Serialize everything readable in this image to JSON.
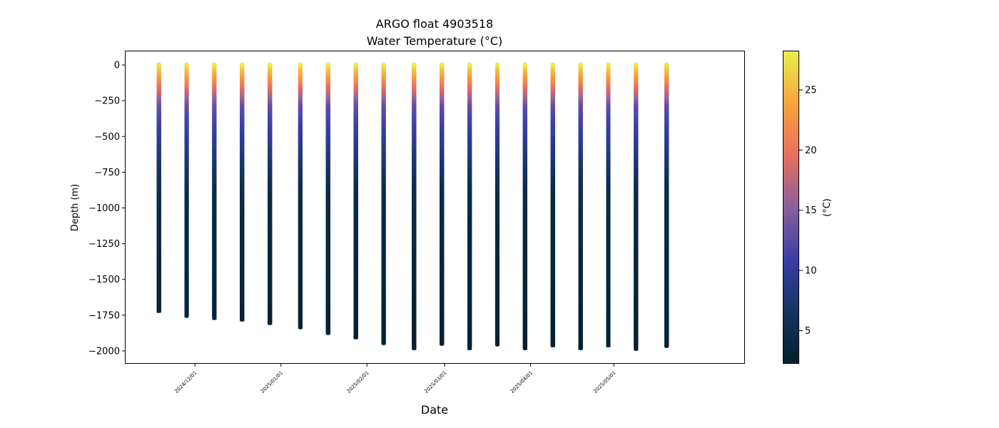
{
  "chart_data": {
    "type": "scatter",
    "title": "ARGO float 4903518",
    "subtitle": "Water Temperature (°C)",
    "xlabel": "Date",
    "ylabel": "Depth (m)",
    "colorbar_label": "(°C)",
    "ylim": [
      -2085,
      95
    ],
    "xlim": [
      "2024-11-06",
      "2025-06-17"
    ],
    "clim": [
      2.3,
      28.2
    ],
    "yticks": [
      0,
      -250,
      -500,
      -750,
      -1000,
      -1250,
      -1500,
      -1750,
      -2000
    ],
    "ytick_labels": [
      "0",
      "−250",
      "−500",
      "−750",
      "−1000",
      "−1250",
      "−1500",
      "−1750",
      "−2000"
    ],
    "xticks": [
      "2024-12-01",
      "2025-01-01",
      "2025-02-01",
      "2025-03-01",
      "2025-04-01",
      "2025-05-01"
    ],
    "xtick_labels": [
      "2024/12/01",
      "2025/01/01",
      "2025/02/01",
      "2025/03/01",
      "2025/04/01",
      "2025/05/01"
    ],
    "colorbar_ticks": [
      5,
      10,
      15,
      20,
      25
    ],
    "colorbar_tick_labels": [
      "5",
      "10",
      "15",
      "20",
      "25"
    ],
    "colormap": [
      "#04202e",
      "#133561",
      "#3b3ea8",
      "#8a5f9d",
      "#e86f5c",
      "#f9a43b",
      "#e8f04c"
    ],
    "grid": false,
    "profiles": [
      {
        "date": "2024-11-18",
        "max_depth": -1720,
        "surface_temp": 27.5
      },
      {
        "date": "2024-11-28",
        "max_depth": -1755,
        "surface_temp": 27.6
      },
      {
        "date": "2024-12-08",
        "max_depth": -1770,
        "surface_temp": 27.8
      },
      {
        "date": "2024-12-18",
        "max_depth": -1780,
        "surface_temp": 27.9
      },
      {
        "date": "2024-12-28",
        "max_depth": -1805,
        "surface_temp": 27.8
      },
      {
        "date": "2025-01-08",
        "max_depth": -1835,
        "surface_temp": 27.9
      },
      {
        "date": "2025-01-18",
        "max_depth": -1875,
        "surface_temp": 28.0
      },
      {
        "date": "2025-01-28",
        "max_depth": -1905,
        "surface_temp": 28.0
      },
      {
        "date": "2025-02-07",
        "max_depth": -1945,
        "surface_temp": 28.0
      },
      {
        "date": "2025-02-18",
        "max_depth": -1980,
        "surface_temp": 28.1
      },
      {
        "date": "2025-02-28",
        "max_depth": -1950,
        "surface_temp": 28.2
      },
      {
        "date": "2025-03-10",
        "max_depth": -1980,
        "surface_temp": 28.2
      },
      {
        "date": "2025-03-20",
        "max_depth": -1955,
        "surface_temp": 28.1
      },
      {
        "date": "2025-03-30",
        "max_depth": -1980,
        "surface_temp": 28.1
      },
      {
        "date": "2025-04-09",
        "max_depth": -1960,
        "surface_temp": 28.0
      },
      {
        "date": "2025-04-19",
        "max_depth": -1980,
        "surface_temp": 27.9
      },
      {
        "date": "2025-04-29",
        "max_depth": -1960,
        "surface_temp": 27.8
      },
      {
        "date": "2025-05-09",
        "max_depth": -1985,
        "surface_temp": 27.7
      },
      {
        "date": "2025-05-20",
        "max_depth": -1965,
        "surface_temp": 27.6
      }
    ]
  }
}
